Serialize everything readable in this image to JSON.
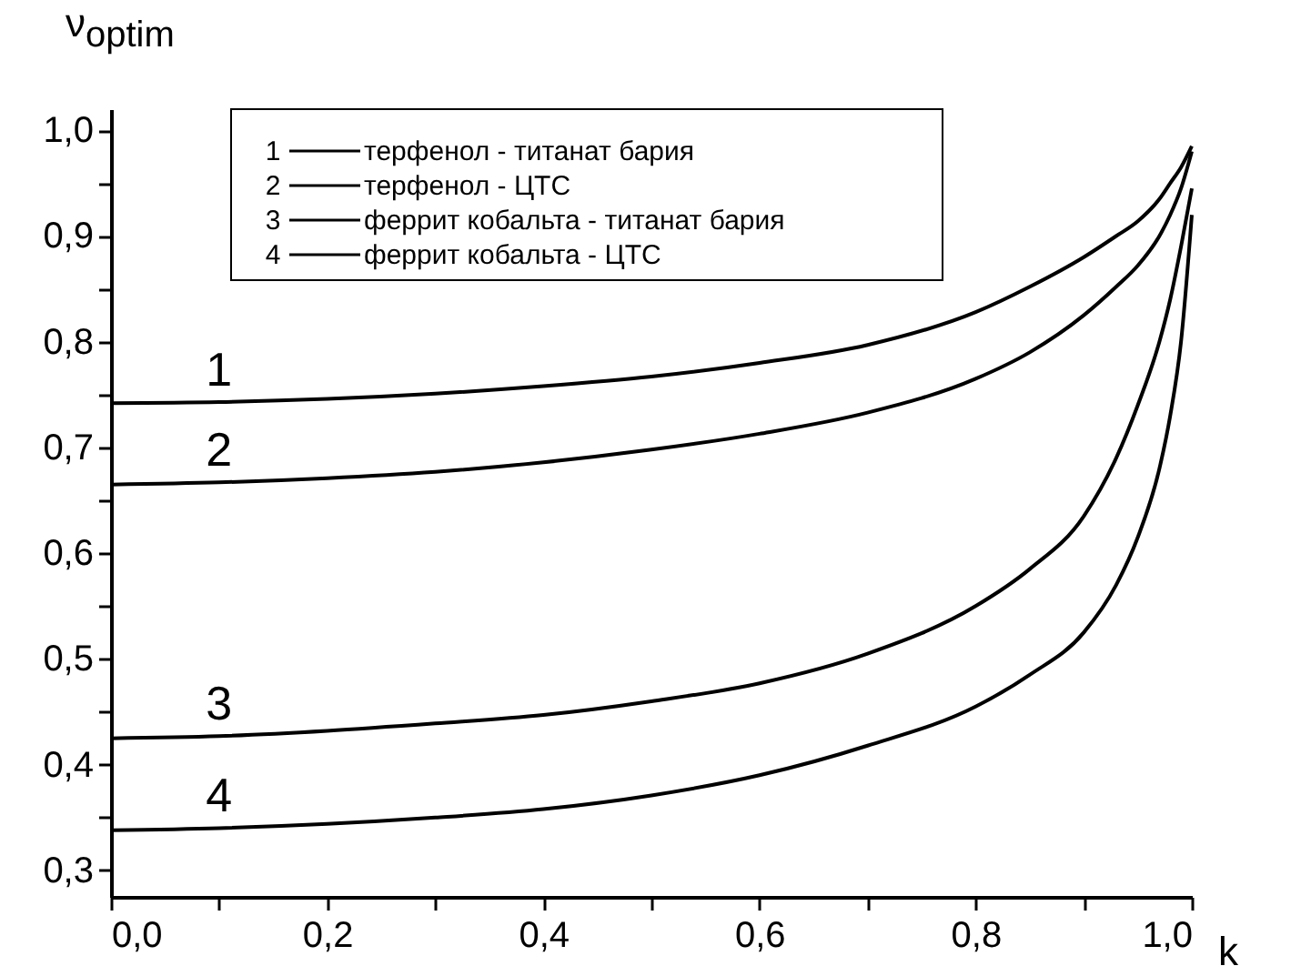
{
  "chart_data": {
    "type": "line",
    "ylabel": "ν$_{optim}$",
    "xlabel": "k",
    "xlim": [
      0,
      1.0
    ],
    "ylim": [
      0.275,
      1.02
    ],
    "xticks": [
      {
        "value": 0,
        "label": "0,0"
      },
      {
        "value": 0.1,
        "label": null
      },
      {
        "value": 0.2,
        "label": "0,2"
      },
      {
        "value": 0.3,
        "label": null
      },
      {
        "value": 0.4,
        "label": "0,4"
      },
      {
        "value": 0.5,
        "label": null
      },
      {
        "value": 0.6,
        "label": "0,6"
      },
      {
        "value": 0.7,
        "label": null
      },
      {
        "value": 0.8,
        "label": "0,8"
      },
      {
        "value": 0.9,
        "label": null
      },
      {
        "value": 1.0,
        "label": "1,0"
      }
    ],
    "yticks": [
      {
        "value": 0.3,
        "label": "0,3"
      },
      {
        "value": 0.35,
        "label": null
      },
      {
        "value": 0.4,
        "label": "0,4"
      },
      {
        "value": 0.45,
        "label": null
      },
      {
        "value": 0.5,
        "label": "0,5"
      },
      {
        "value": 0.55,
        "label": null
      },
      {
        "value": 0.6,
        "label": "0,6"
      },
      {
        "value": 0.65,
        "label": null
      },
      {
        "value": 0.7,
        "label": "0,7"
      },
      {
        "value": 0.75,
        "label": null
      },
      {
        "value": 0.8,
        "label": "0,8"
      },
      {
        "value": 0.85,
        "label": null
      },
      {
        "value": 0.9,
        "label": "0,9"
      },
      {
        "value": 0.95,
        "label": null
      },
      {
        "value": 1.0,
        "label": "1,0"
      }
    ],
    "x": [
      0,
      0.1,
      0.2,
      0.3,
      0.4,
      0.5,
      0.6,
      0.7,
      0.8,
      0.85,
      0.9,
      0.93,
      0.95,
      0.97,
      0.98,
      0.99,
      1.0
    ],
    "series": [
      {
        "name": "терфенол - титанат бария",
        "color": "#000000",
        "values": [
          0.742,
          0.743,
          0.746,
          0.751,
          0.758,
          0.767,
          0.78,
          0.797,
          0.828,
          0.852,
          0.88,
          0.9,
          0.914,
          0.935,
          0.95,
          0.965,
          0.985
        ]
      },
      {
        "name": "терфенол - ЦТС",
        "color": "#000000",
        "values": [
          0.665,
          0.667,
          0.671,
          0.677,
          0.686,
          0.698,
          0.713,
          0.733,
          0.765,
          0.79,
          0.825,
          0.852,
          0.872,
          0.9,
          0.92,
          0.945,
          0.98
        ]
      },
      {
        "name": "феррит кобальта - титанат бария",
        "color": "#000000",
        "values": [
          0.425,
          0.427,
          0.432,
          0.439,
          0.447,
          0.46,
          0.477,
          0.505,
          0.55,
          0.585,
          0.635,
          0.69,
          0.74,
          0.8,
          0.84,
          0.89,
          0.945
        ]
      },
      {
        "name": "феррит кобальта - ЦТС",
        "color": "#000000",
        "values": [
          0.338,
          0.34,
          0.344,
          0.35,
          0.358,
          0.371,
          0.39,
          0.418,
          0.455,
          0.485,
          0.525,
          0.57,
          0.615,
          0.68,
          0.73,
          0.8,
          0.92
        ]
      }
    ],
    "annotations": [
      "1",
      "2",
      "3",
      "4"
    ],
    "legend": "top",
    "grid": false,
    "marker": "none",
    "line_style": "solid"
  }
}
